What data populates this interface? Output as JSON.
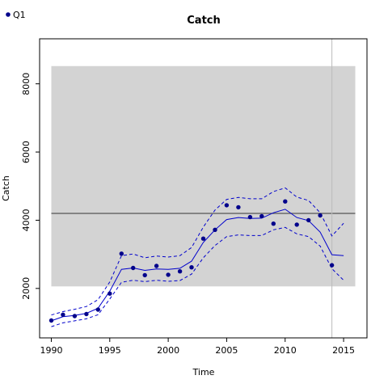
{
  "chart_data": {
    "type": "line",
    "title": "Catch",
    "xlabel": "Time",
    "ylabel": "Catch",
    "xlim": [
      1989.0,
      2017.0
    ],
    "ylim": [
      550,
      9320
    ],
    "xticks": [
      1990,
      1995,
      2000,
      2005,
      2010,
      2015
    ],
    "yticks": [
      2000,
      4000,
      6000,
      8000
    ],
    "grid": false,
    "legend": {
      "position": "top-left",
      "entries": [
        {
          "name": "Q1",
          "color": "#00008B"
        }
      ]
    },
    "shaded_region": {
      "x": [
        1990,
        2016
      ],
      "y": [
        2060,
        8520
      ],
      "color": "#D3D3D3"
    },
    "reference_hline": {
      "y": 4200,
      "color": "#555555"
    },
    "reference_vline": {
      "x": 2014,
      "color": "#BBBBBB"
    },
    "observed": {
      "name": "Q1",
      "color": "#00008B",
      "x": [
        1990,
        1991,
        1992,
        1993,
        1994,
        1995,
        1996,
        1997,
        1998,
        1999,
        2000,
        2001,
        2002,
        2003,
        2004,
        2005,
        2006,
        2007,
        2008,
        2009,
        2010,
        2011,
        2012,
        2013,
        2014
      ],
      "y": [
        1060,
        1230,
        1190,
        1250,
        1380,
        1850,
        3020,
        2600,
        2390,
        2660,
        2400,
        2500,
        2620,
        3460,
        3720,
        4440,
        4380,
        4090,
        4120,
        3900,
        4550,
        3870,
        4000,
        4140,
        2680
      ]
    },
    "fit": {
      "color": "#0000CC",
      "x": [
        1990,
        1991,
        1992,
        1993,
        1994,
        1995,
        1996,
        1997,
        1998,
        1999,
        2000,
        2001,
        2002,
        2003,
        2004,
        2005,
        2006,
        2007,
        2008,
        2009,
        2010,
        2011,
        2012,
        2013,
        2014,
        2015
      ],
      "y": [
        1050,
        1170,
        1210,
        1270,
        1420,
        1920,
        2560,
        2600,
        2530,
        2570,
        2560,
        2590,
        2800,
        3350,
        3720,
        4020,
        4080,
        4050,
        4060,
        4220,
        4320,
        4080,
        3990,
        3650,
        2990,
        2960
      ]
    },
    "upper": {
      "color": "#0000CC",
      "x": [
        1990,
        1991,
        1992,
        1993,
        1994,
        1995,
        1996,
        1997,
        1998,
        1999,
        2000,
        2001,
        2002,
        2003,
        2004,
        2005,
        2006,
        2007,
        2008,
        2009,
        2010,
        2011,
        2012,
        2013,
        2014,
        2015
      ],
      "y": [
        1220,
        1320,
        1390,
        1470,
        1670,
        2190,
        2960,
        3010,
        2900,
        2950,
        2920,
        2960,
        3200,
        3800,
        4300,
        4610,
        4670,
        4630,
        4630,
        4840,
        4950,
        4680,
        4580,
        4220,
        3540,
        3910
      ]
    },
    "lower": {
      "color": "#0000CC",
      "x": [
        1990,
        1991,
        1992,
        1993,
        1994,
        1995,
        1996,
        1997,
        1998,
        1999,
        2000,
        2001,
        2002,
        2003,
        2004,
        2005,
        2006,
        2007,
        2008,
        2009,
        2010,
        2011,
        2012,
        2013,
        2014,
        2015
      ],
      "y": [
        880,
        990,
        1050,
        1110,
        1230,
        1690,
        2180,
        2240,
        2200,
        2240,
        2210,
        2230,
        2420,
        2900,
        3260,
        3520,
        3570,
        3550,
        3550,
        3720,
        3790,
        3600,
        3520,
        3240,
        2580,
        2240
      ]
    }
  }
}
